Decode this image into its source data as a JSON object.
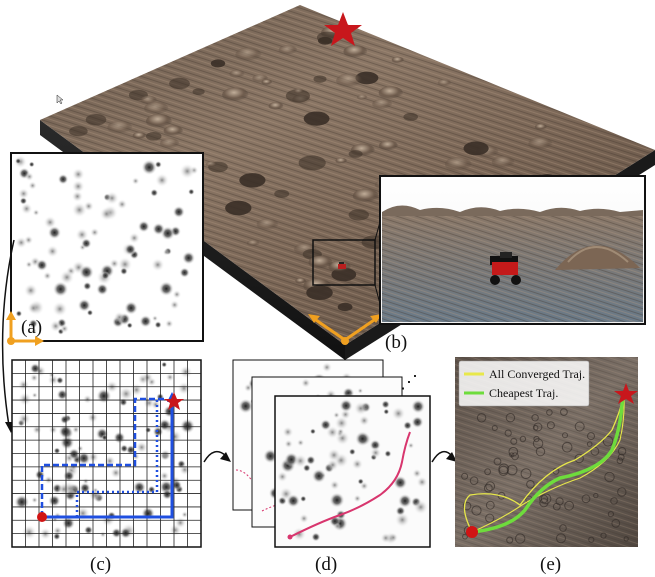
{
  "panels": {
    "a": {
      "label": "(a)"
    },
    "b": {
      "label": "(b)"
    },
    "c": {
      "label": "(c)"
    },
    "d": {
      "label": "(d)"
    },
    "e": {
      "label": "(e)"
    }
  },
  "legend": {
    "items": [
      {
        "label": "All Converged Traj.",
        "color": "#e8e84a"
      },
      {
        "label": "Cheapest Traj.",
        "color": "#6edc3c"
      }
    ]
  },
  "ellipsis": "⋰",
  "colors": {
    "goal_star": "#c8171c",
    "start_dot": "#d11414",
    "planner_path": "#1f4fe0",
    "axis_orange": "#f0a020",
    "traj_pink": "#d8366e",
    "traj_green": "#6edc3c",
    "traj_yellow": "#e8e84a"
  },
  "icons": [
    "star-icon",
    "robot-icon",
    "arrow-icon"
  ]
}
